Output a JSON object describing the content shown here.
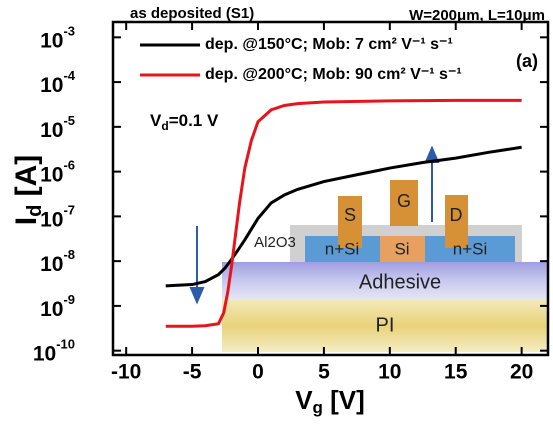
{
  "chart_data": {
    "type": "line",
    "title": "as deposited (S1)",
    "subtitle": "W=200μm, L=10μm",
    "panel_label": "(a)",
    "annotation": {
      "main": "V",
      "sub": "d",
      "rest": "=0.1 V"
    },
    "xlabel": {
      "main": "V",
      "sub": "g",
      "rest": " [V]"
    },
    "ylabel": {
      "main": "I",
      "sub": "d",
      "rest": " [A]"
    },
    "log_y": true,
    "xlim": [
      -11,
      22
    ],
    "ylim": [
      8e-11,
      0.0022
    ],
    "xticks": [
      -10,
      -5,
      0,
      5,
      10,
      15,
      20
    ],
    "yticks": [
      {
        "value": 1e-10,
        "label": "10",
        "sup": "-10"
      },
      {
        "value": 1e-09,
        "label": "10",
        "sup": "-9"
      },
      {
        "value": 1e-08,
        "label": "10",
        "sup": "-8"
      },
      {
        "value": 1e-07,
        "label": "10",
        "sup": "-7"
      },
      {
        "value": 1e-06,
        "label": "10",
        "sup": "-6"
      },
      {
        "value": 1e-05,
        "label": "10",
        "sup": "-5"
      },
      {
        "value": 0.0001,
        "label": "10",
        "sup": "-4"
      },
      {
        "value": 0.001,
        "label": "10",
        "sup": "-3"
      }
    ],
    "series": [
      {
        "name": "dep. @150°C; Mob: 7 cm² V⁻¹ s⁻¹",
        "color": "#000000",
        "x": [
          -7,
          -5,
          -4,
          -3,
          -2.5,
          -2,
          -1.5,
          -1,
          0,
          1,
          2,
          3,
          5,
          7.5,
          10,
          12.5,
          15,
          17.5,
          20
        ],
        "values": [
          2.8e-09,
          3e-09,
          3.5e-09,
          5e-09,
          7e-09,
          1.1e-08,
          1.8e-08,
          3e-08,
          9e-08,
          2e-07,
          3e-07,
          4e-07,
          6e-07,
          8.5e-07,
          1.2e-06,
          1.6e-06,
          2e-06,
          2.7e-06,
          3.5e-06
        ]
      },
      {
        "name": "dep. @200°C; Mob: 90 cm² V⁻¹ s⁻¹",
        "color": "#e8141c",
        "x": [
          -7,
          -5,
          -4,
          -3,
          -2.6,
          -2.3,
          -2,
          -1.7,
          -1.4,
          -1,
          -0.5,
          0,
          1,
          2,
          3,
          5,
          10,
          15,
          20
        ],
        "values": [
          3.5e-10,
          3.5e-10,
          3.6e-10,
          4e-10,
          7e-10,
          2e-09,
          8e-09,
          4e-08,
          2e-07,
          1.2e-06,
          5e-06,
          1.3e-05,
          2.4e-05,
          3e-05,
          3.3e-05,
          3.6e-05,
          3.8e-05,
          3.9e-05,
          3.9e-05
        ]
      }
    ],
    "inset": {
      "layers": [
        "PI",
        "Adhesive",
        "Al2O3"
      ],
      "regions": [
        "n+Si",
        "Si",
        "n+Si"
      ],
      "electrodes": [
        "S",
        "G",
        "D"
      ]
    }
  }
}
